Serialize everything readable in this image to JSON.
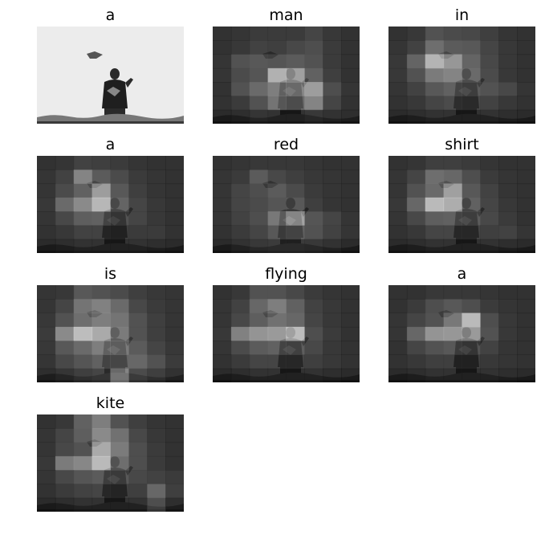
{
  "figure": {
    "words": [
      "a",
      "man",
      "in",
      "a",
      "red",
      "shirt",
      "is",
      "flying",
      "a",
      "kite"
    ],
    "columns": 3,
    "panel_content": "grayscale photo of a man flying a kite with an attention-weight heatmap overlay"
  },
  "attention_maps": [
    {
      "word": "a",
      "overlay": false,
      "grid": []
    },
    {
      "word": "man",
      "overlay": true,
      "grid": [
        [
          0.1,
          0.12,
          0.16,
          0.16,
          0.16,
          0.22,
          0.14,
          0.1
        ],
        [
          0.1,
          0.14,
          0.2,
          0.18,
          0.24,
          0.28,
          0.16,
          0.1
        ],
        [
          0.12,
          0.3,
          0.34,
          0.32,
          0.36,
          0.3,
          0.16,
          0.1
        ],
        [
          0.12,
          0.26,
          0.32,
          0.9,
          0.8,
          0.4,
          0.18,
          0.1
        ],
        [
          0.1,
          0.3,
          0.46,
          0.58,
          0.64,
          0.78,
          0.28,
          0.12
        ],
        [
          0.1,
          0.16,
          0.3,
          0.52,
          0.46,
          0.62,
          0.22,
          0.1
        ],
        [
          0.06,
          0.08,
          0.12,
          0.1,
          0.1,
          0.14,
          0.1,
          0.08
        ]
      ]
    },
    {
      "word": "in",
      "overlay": true,
      "grid": [
        [
          0.1,
          0.14,
          0.3,
          0.26,
          0.24,
          0.18,
          0.12,
          0.1
        ],
        [
          0.12,
          0.2,
          0.48,
          0.36,
          0.34,
          0.22,
          0.14,
          0.1
        ],
        [
          0.14,
          0.42,
          0.92,
          0.74,
          0.42,
          0.24,
          0.14,
          0.1
        ],
        [
          0.14,
          0.3,
          0.56,
          0.62,
          0.46,
          0.26,
          0.14,
          0.1
        ],
        [
          0.12,
          0.2,
          0.34,
          0.4,
          0.36,
          0.3,
          0.24,
          0.12
        ],
        [
          0.1,
          0.14,
          0.22,
          0.26,
          0.24,
          0.2,
          0.14,
          0.1
        ],
        [
          0.06,
          0.08,
          0.1,
          0.1,
          0.1,
          0.1,
          0.08,
          0.06
        ]
      ]
    },
    {
      "word": "a",
      "overlay": true,
      "grid": [
        [
          0.1,
          0.12,
          0.2,
          0.18,
          0.16,
          0.12,
          0.1,
          0.1
        ],
        [
          0.12,
          0.2,
          0.62,
          0.36,
          0.26,
          0.16,
          0.12,
          0.1
        ],
        [
          0.12,
          0.26,
          0.4,
          0.78,
          0.34,
          0.18,
          0.12,
          0.1
        ],
        [
          0.14,
          0.46,
          0.66,
          0.94,
          0.42,
          0.22,
          0.14,
          0.1
        ],
        [
          0.12,
          0.24,
          0.38,
          0.4,
          0.3,
          0.22,
          0.14,
          0.1
        ],
        [
          0.1,
          0.14,
          0.2,
          0.2,
          0.18,
          0.16,
          0.16,
          0.1
        ],
        [
          0.06,
          0.08,
          0.1,
          0.1,
          0.1,
          0.1,
          0.08,
          0.06
        ]
      ]
    },
    {
      "word": "red",
      "overlay": true,
      "grid": [
        [
          0.1,
          0.12,
          0.14,
          0.14,
          0.14,
          0.12,
          0.1,
          0.1
        ],
        [
          0.12,
          0.16,
          0.36,
          0.24,
          0.18,
          0.14,
          0.12,
          0.1
        ],
        [
          0.12,
          0.22,
          0.28,
          0.36,
          0.26,
          0.16,
          0.12,
          0.1
        ],
        [
          0.12,
          0.22,
          0.26,
          0.32,
          0.34,
          0.18,
          0.12,
          0.1
        ],
        [
          0.12,
          0.2,
          0.28,
          0.54,
          0.82,
          0.32,
          0.22,
          0.12
        ],
        [
          0.1,
          0.16,
          0.22,
          0.34,
          0.4,
          0.3,
          0.2,
          0.12
        ],
        [
          0.06,
          0.1,
          0.14,
          0.16,
          0.16,
          0.14,
          0.1,
          0.06
        ]
      ]
    },
    {
      "word": "shirt",
      "overlay": true,
      "grid": [
        [
          0.1,
          0.12,
          0.18,
          0.18,
          0.16,
          0.12,
          0.1,
          0.1
        ],
        [
          0.12,
          0.22,
          0.48,
          0.44,
          0.28,
          0.16,
          0.12,
          0.1
        ],
        [
          0.12,
          0.3,
          0.46,
          0.8,
          0.34,
          0.2,
          0.12,
          0.1
        ],
        [
          0.14,
          0.44,
          0.96,
          0.88,
          0.4,
          0.22,
          0.14,
          0.1
        ],
        [
          0.12,
          0.24,
          0.38,
          0.4,
          0.36,
          0.24,
          0.16,
          0.1
        ],
        [
          0.1,
          0.14,
          0.22,
          0.22,
          0.22,
          0.18,
          0.2,
          0.12
        ],
        [
          0.06,
          0.08,
          0.1,
          0.1,
          0.1,
          0.1,
          0.08,
          0.06
        ]
      ]
    },
    {
      "word": "is",
      "overlay": true,
      "grid": [
        [
          0.12,
          0.14,
          0.34,
          0.3,
          0.26,
          0.18,
          0.14,
          0.12
        ],
        [
          0.12,
          0.22,
          0.52,
          0.6,
          0.46,
          0.24,
          0.16,
          0.12
        ],
        [
          0.14,
          0.3,
          0.48,
          0.58,
          0.52,
          0.3,
          0.18,
          0.12
        ],
        [
          0.16,
          0.66,
          0.98,
          0.86,
          0.56,
          0.3,
          0.18,
          0.12
        ],
        [
          0.14,
          0.34,
          0.46,
          0.58,
          0.56,
          0.36,
          0.22,
          0.14
        ],
        [
          0.12,
          0.24,
          0.32,
          0.4,
          0.42,
          0.44,
          0.3,
          0.16
        ],
        [
          0.08,
          0.12,
          0.18,
          0.22,
          0.62,
          0.26,
          0.18,
          0.1
        ]
      ]
    },
    {
      "word": "flying",
      "overlay": true,
      "grid": [
        [
          0.1,
          0.14,
          0.3,
          0.3,
          0.24,
          0.16,
          0.12,
          0.1
        ],
        [
          0.12,
          0.2,
          0.44,
          0.58,
          0.4,
          0.2,
          0.14,
          0.1
        ],
        [
          0.12,
          0.24,
          0.38,
          0.5,
          0.44,
          0.22,
          0.14,
          0.1
        ],
        [
          0.14,
          0.6,
          0.72,
          0.76,
          0.98,
          0.28,
          0.16,
          0.1
        ],
        [
          0.12,
          0.26,
          0.36,
          0.4,
          0.38,
          0.24,
          0.14,
          0.1
        ],
        [
          0.1,
          0.16,
          0.22,
          0.22,
          0.22,
          0.18,
          0.14,
          0.1
        ],
        [
          0.06,
          0.08,
          0.1,
          0.1,
          0.1,
          0.1,
          0.08,
          0.06
        ]
      ]
    },
    {
      "word": "a",
      "overlay": true,
      "grid": [
        [
          0.1,
          0.1,
          0.14,
          0.14,
          0.14,
          0.12,
          0.1,
          0.1
        ],
        [
          0.1,
          0.16,
          0.28,
          0.34,
          0.28,
          0.16,
          0.12,
          0.1
        ],
        [
          0.12,
          0.22,
          0.3,
          0.54,
          0.96,
          0.28,
          0.14,
          0.1
        ],
        [
          0.12,
          0.44,
          0.72,
          0.74,
          0.76,
          0.3,
          0.14,
          0.1
        ],
        [
          0.1,
          0.22,
          0.3,
          0.34,
          0.3,
          0.2,
          0.12,
          0.1
        ],
        [
          0.1,
          0.14,
          0.18,
          0.18,
          0.18,
          0.14,
          0.12,
          0.1
        ],
        [
          0.06,
          0.08,
          0.1,
          0.1,
          0.1,
          0.1,
          0.08,
          0.06
        ]
      ]
    },
    {
      "word": "kite",
      "overlay": true,
      "grid": [
        [
          0.1,
          0.14,
          0.4,
          0.58,
          0.3,
          0.18,
          0.12,
          0.1
        ],
        [
          0.12,
          0.22,
          0.38,
          0.66,
          0.5,
          0.24,
          0.14,
          0.1
        ],
        [
          0.12,
          0.24,
          0.3,
          0.86,
          0.56,
          0.28,
          0.16,
          0.1
        ],
        [
          0.14,
          0.56,
          0.64,
          0.96,
          0.48,
          0.28,
          0.16,
          0.1
        ],
        [
          0.12,
          0.24,
          0.32,
          0.36,
          0.34,
          0.24,
          0.2,
          0.16
        ],
        [
          0.1,
          0.16,
          0.2,
          0.22,
          0.2,
          0.18,
          0.44,
          0.18
        ],
        [
          0.06,
          0.08,
          0.1,
          0.1,
          0.1,
          0.1,
          0.28,
          0.08
        ]
      ]
    }
  ]
}
